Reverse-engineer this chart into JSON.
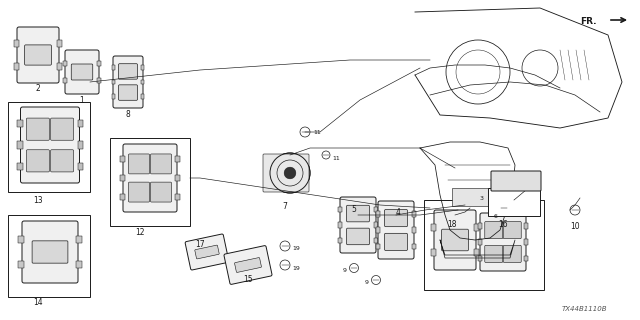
{
  "bg_color": "#ffffff",
  "line_color": "#1a1a1a",
  "part_number_text": "TX44B1110B",
  "fig_width": 6.4,
  "fig_height": 3.2,
  "dpi": 100
}
